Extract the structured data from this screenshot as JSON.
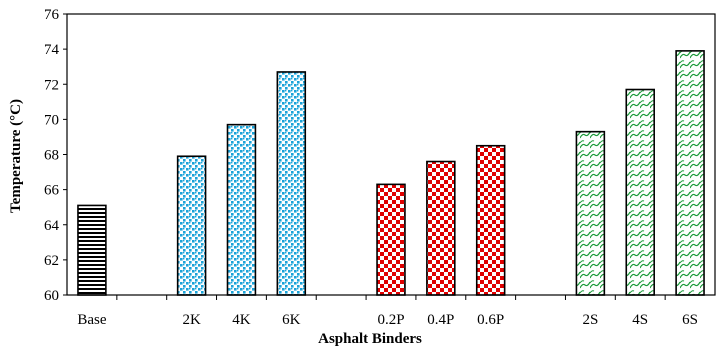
{
  "chart_data": {
    "type": "bar",
    "xlabel": "Asphalt Binders",
    "ylabel": "Temperature (°C)",
    "ylim": [
      60,
      76
    ],
    "yticks": [
      60,
      62,
      64,
      66,
      68,
      70,
      72,
      74,
      76
    ],
    "grid": false,
    "legend": "none",
    "categories": [
      "Base",
      "",
      "2K",
      "4K",
      "6K",
      "",
      "0.2P",
      "0.4P",
      "0.6P",
      "",
      "2S",
      "4S",
      "6S"
    ],
    "values": [
      65.1,
      null,
      67.9,
      69.7,
      72.7,
      null,
      66.3,
      67.6,
      68.5,
      null,
      69.3,
      71.7,
      73.9
    ],
    "patterns": [
      "horizontal-lines",
      null,
      "blue-dots",
      "blue-dots",
      "blue-dots",
      null,
      "red-checker",
      "red-checker",
      "red-checker",
      null,
      "green-waves",
      "green-waves",
      "green-waves"
    ],
    "colors": {
      "base": "#000000",
      "k_series": "#1aa3d9",
      "p_series": "#e00000",
      "s_series": "#1a9a3a"
    }
  }
}
